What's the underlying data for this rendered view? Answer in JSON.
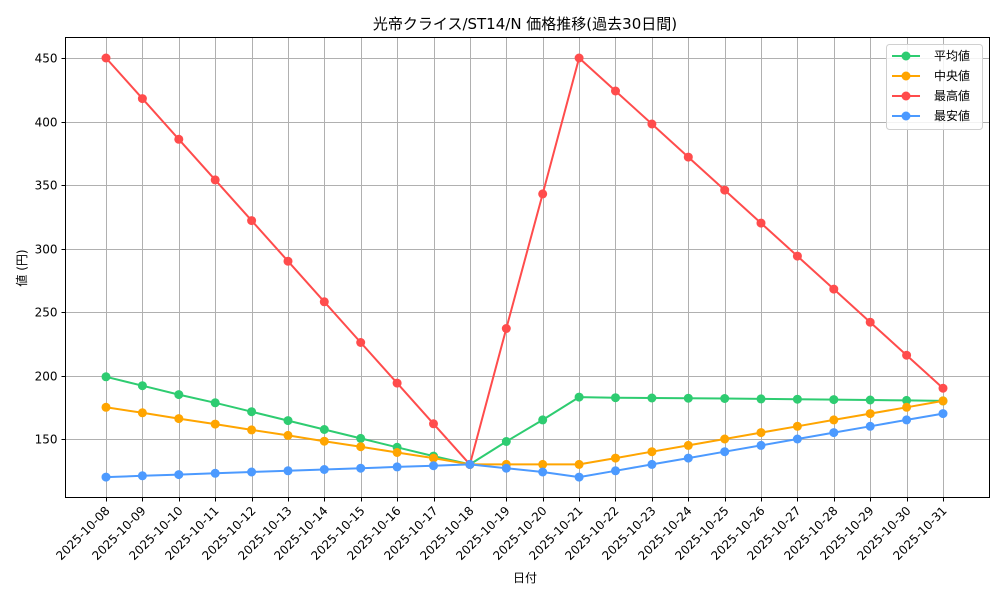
{
  "chart_data": {
    "type": "line",
    "title": "光帝クライス/ST14/N 価格推移(過去30日間)",
    "xlabel": "日付",
    "ylabel": "値 (円)",
    "ylim": [
      110,
      466
    ],
    "yticks": [
      150,
      200,
      250,
      300,
      350,
      400,
      450
    ],
    "grid": true,
    "legend_position": "upper right",
    "categories": [
      "2025-10-08",
      "2025-10-09",
      "2025-10-10",
      "2025-10-11",
      "2025-10-12",
      "2025-10-13",
      "2025-10-14",
      "2025-10-15",
      "2025-10-16",
      "2025-10-17",
      "2025-10-18",
      "2025-10-19",
      "2025-10-20",
      "2025-10-21",
      "2025-10-22",
      "2025-10-23",
      "2025-10-24",
      "2025-10-25",
      "2025-10-26",
      "2025-10-27",
      "2025-10-28",
      "2025-10-29",
      "2025-10-30",
      "2025-10-31"
    ],
    "series": [
      {
        "name": "平均値",
        "color": "#2ecc71",
        "values": [
          199,
          192,
          185,
          178.5,
          171.5,
          164.5,
          157.5,
          150.5,
          143.5,
          136.5,
          130,
          148,
          165,
          183,
          182.5,
          182.3,
          182.1,
          181.9,
          181.6,
          181.3,
          181,
          180.7,
          180.4,
          180
        ]
      },
      {
        "name": "中央値",
        "color": "#ffa500",
        "values": [
          175,
          170.6,
          166.1,
          161.7,
          157.2,
          152.8,
          148.3,
          143.9,
          139.4,
          135,
          130,
          130,
          130,
          130,
          135,
          140,
          145,
          150,
          155,
          160,
          165,
          170,
          175,
          180
        ]
      },
      {
        "name": "最高値",
        "color": "#ff4c4c",
        "values": [
          450,
          418,
          386,
          354,
          322,
          290,
          258,
          226,
          194,
          162,
          130,
          237,
          343,
          450,
          424,
          398,
          372,
          346,
          320,
          294,
          268,
          242,
          216,
          190
        ]
      },
      {
        "name": "最安値",
        "color": "#4c9aff",
        "values": [
          120,
          121,
          122,
          123,
          124,
          125,
          126,
          127,
          128,
          129,
          130,
          127,
          124,
          120,
          125,
          130,
          135,
          140,
          145,
          150,
          155,
          160,
          165,
          170
        ]
      }
    ]
  }
}
